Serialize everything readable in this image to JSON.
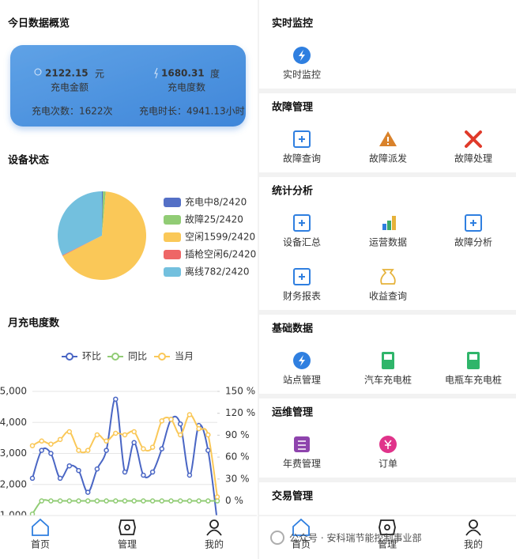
{
  "overview": {
    "title": "今日数据概览",
    "amount": 2122.15,
    "amount_unit": "元",
    "amount_label": "充电金额",
    "energy": 1680.31,
    "energy_unit": "度",
    "energy_label": "充电度数",
    "count_text": "充电次数：1622次",
    "duration_text": "充电时长：4941.13小时"
  },
  "chart_data": [
    {
      "type": "pie",
      "title": "设备状态",
      "categories": [
        "充电中8/2420",
        "故障25/2420",
        "空闲1599/2420",
        "插枪空闲6/2420",
        "离线782/2420"
      ],
      "values": [
        8,
        25,
        1599,
        6,
        782
      ],
      "colors": [
        "#5470c6",
        "#91cc75",
        "#fac858",
        "#ee6666",
        "#73c0de"
      ]
    },
    {
      "type": "line",
      "title": "月充电度数",
      "categories": [
        null,
        null,
        null,
        null,
        null,
        null,
        null,
        null,
        null,
        null,
        null,
        null,
        null,
        null,
        null,
        null,
        null,
        null,
        null,
        null,
        null
      ],
      "series": [
        {
          "name": "环比",
          "color": "#4a66c4",
          "values": [
            2200,
            3100,
            3000,
            2200,
            2600,
            2450,
            1750,
            2500,
            3100,
            4750,
            2400,
            3350,
            2300,
            2400,
            3150,
            4100,
            3950,
            2300,
            3900,
            3100,
            800
          ]
        },
        {
          "name": "同比",
          "color": "#91cc75",
          "axis": "y2",
          "values": [
            -18,
            0,
            0,
            0,
            0,
            0,
            0,
            0,
            0,
            0,
            0,
            0,
            0,
            0,
            0,
            0,
            0,
            0,
            0,
            0,
            0
          ]
        },
        {
          "name": "当月",
          "color": "#fac858",
          "values": [
            3250,
            3400,
            3300,
            3450,
            3700,
            3100,
            3100,
            3600,
            3400,
            3650,
            3600,
            3700,
            3150,
            3200,
            4050,
            4100,
            3600,
            4250,
            3800,
            3600,
            1600
          ]
        }
      ],
      "ylim": [
        1000,
        5000
      ],
      "yticks": [
        {
          "value": 1000,
          "label": "1,000"
        },
        {
          "value": 2000,
          "label": "2,000"
        },
        {
          "value": 3000,
          "label": "3,000"
        },
        {
          "value": 4000,
          "label": "4,000"
        },
        {
          "value": 5000,
          "label": "5,000"
        }
      ],
      "y2lim": [
        -20,
        150
      ],
      "y2ticks": [
        {
          "value": 0,
          "label": "0 %"
        },
        {
          "value": 30,
          "label": "30 %"
        },
        {
          "value": 60,
          "label": "60 %"
        },
        {
          "value": 90,
          "label": "90 %"
        },
        {
          "value": 120,
          "label": "120 %"
        },
        {
          "value": 150,
          "label": "150 %"
        }
      ],
      "grid": true
    }
  ],
  "menu": {
    "sections": [
      {
        "title": "实时监控",
        "items": [
          "实时监控"
        ]
      },
      {
        "title": "故障管理",
        "items": [
          "故障查询",
          "故障派发",
          "故障处理"
        ]
      },
      {
        "title": "统计分析",
        "items": [
          "设备汇总",
          "运营数据",
          "故障分析",
          "财务报表",
          "收益查询"
        ]
      },
      {
        "title": "基础数据",
        "items": [
          "站点管理",
          "汽车充电桩",
          "电瓶车充电桩"
        ]
      },
      {
        "title": "运维管理",
        "items": [
          "年费管理",
          "订单"
        ]
      },
      {
        "title": "交易管理",
        "items": []
      }
    ]
  },
  "nav": [
    "首页",
    "管理",
    "我的"
  ],
  "watermark": "公众号 · 安科瑞节能控制事业部"
}
